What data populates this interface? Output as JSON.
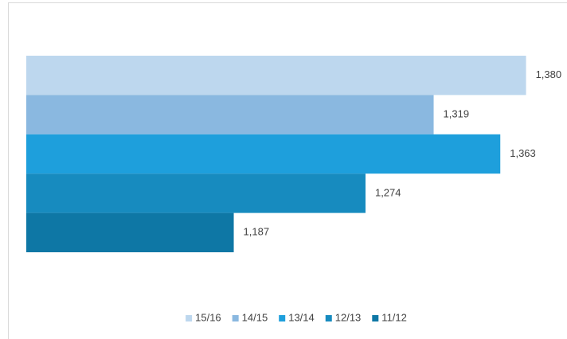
{
  "chart_data": {
    "type": "hbar",
    "series": [
      {
        "name": "15/16",
        "color": "#bdd7ee",
        "values": [
          1380
        ],
        "value_labels": [
          "1,380"
        ]
      },
      {
        "name": "14/15",
        "color": "#8ab8e0",
        "values": [
          1319
        ],
        "value_labels": [
          "1,319"
        ]
      },
      {
        "name": "13/14",
        "color": "#1e9fdc",
        "values": [
          1363
        ],
        "value_labels": [
          "1,363"
        ]
      },
      {
        "name": "12/13",
        "color": "#178bbf",
        "values": [
          1274
        ],
        "value_labels": [
          "1,274"
        ]
      },
      {
        "name": "11/12",
        "color": "#0e77a5",
        "values": [
          1187
        ],
        "value_labels": [
          "1,187"
        ]
      }
    ],
    "xlim": [
      1050,
      1400
    ],
    "legend": "bottom"
  }
}
